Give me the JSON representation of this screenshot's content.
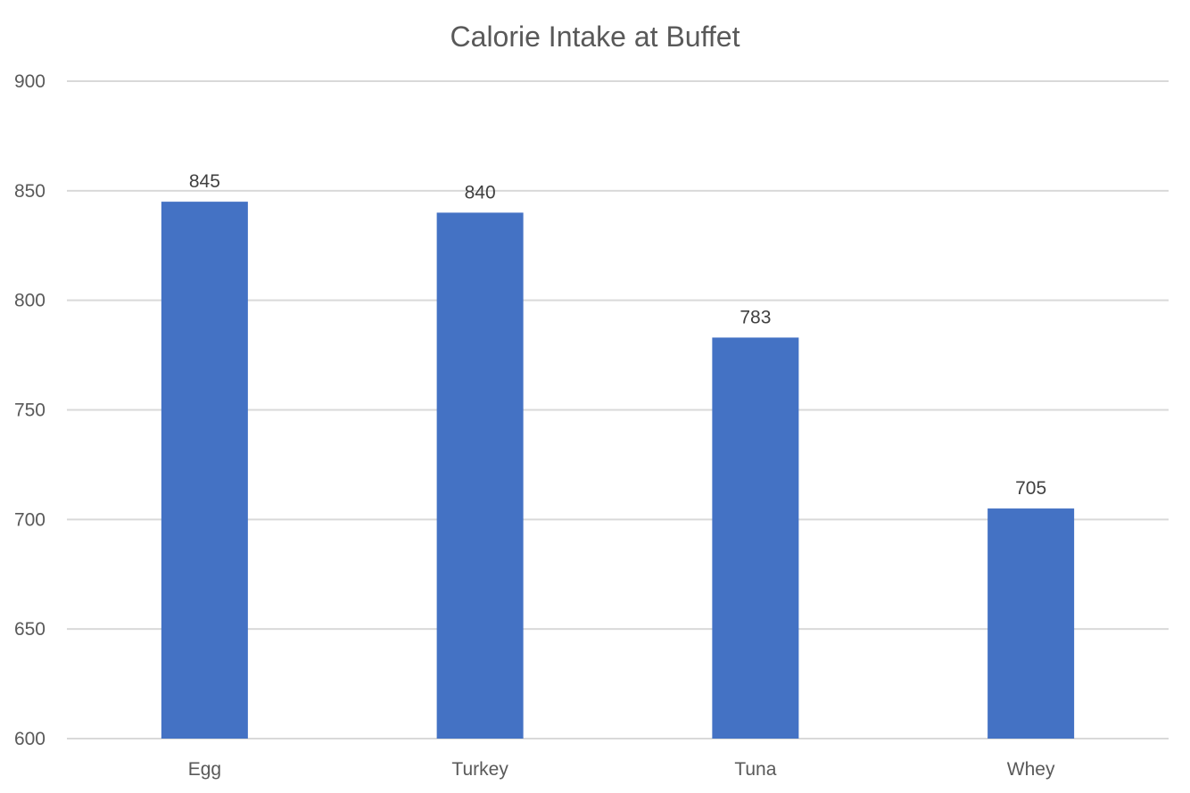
{
  "chart_data": {
    "type": "bar",
    "title": "Calorie Intake at Buffet",
    "xlabel": "",
    "ylabel": "",
    "categories": [
      "Egg",
      "Turkey",
      "Tuna",
      "Whey"
    ],
    "values": [
      845,
      840,
      783,
      705
    ],
    "ylim": [
      600,
      900
    ],
    "yticks": [
      600,
      650,
      700,
      750,
      800,
      850,
      900
    ],
    "data_labels": [
      "845",
      "840",
      "783",
      "705"
    ],
    "grid": true,
    "legend": "none",
    "colors": {
      "bar": "#4472c4",
      "gridline": "#d9d9d9",
      "title": "#595959",
      "tick_label": "#595959",
      "data_label": "#404040"
    }
  }
}
